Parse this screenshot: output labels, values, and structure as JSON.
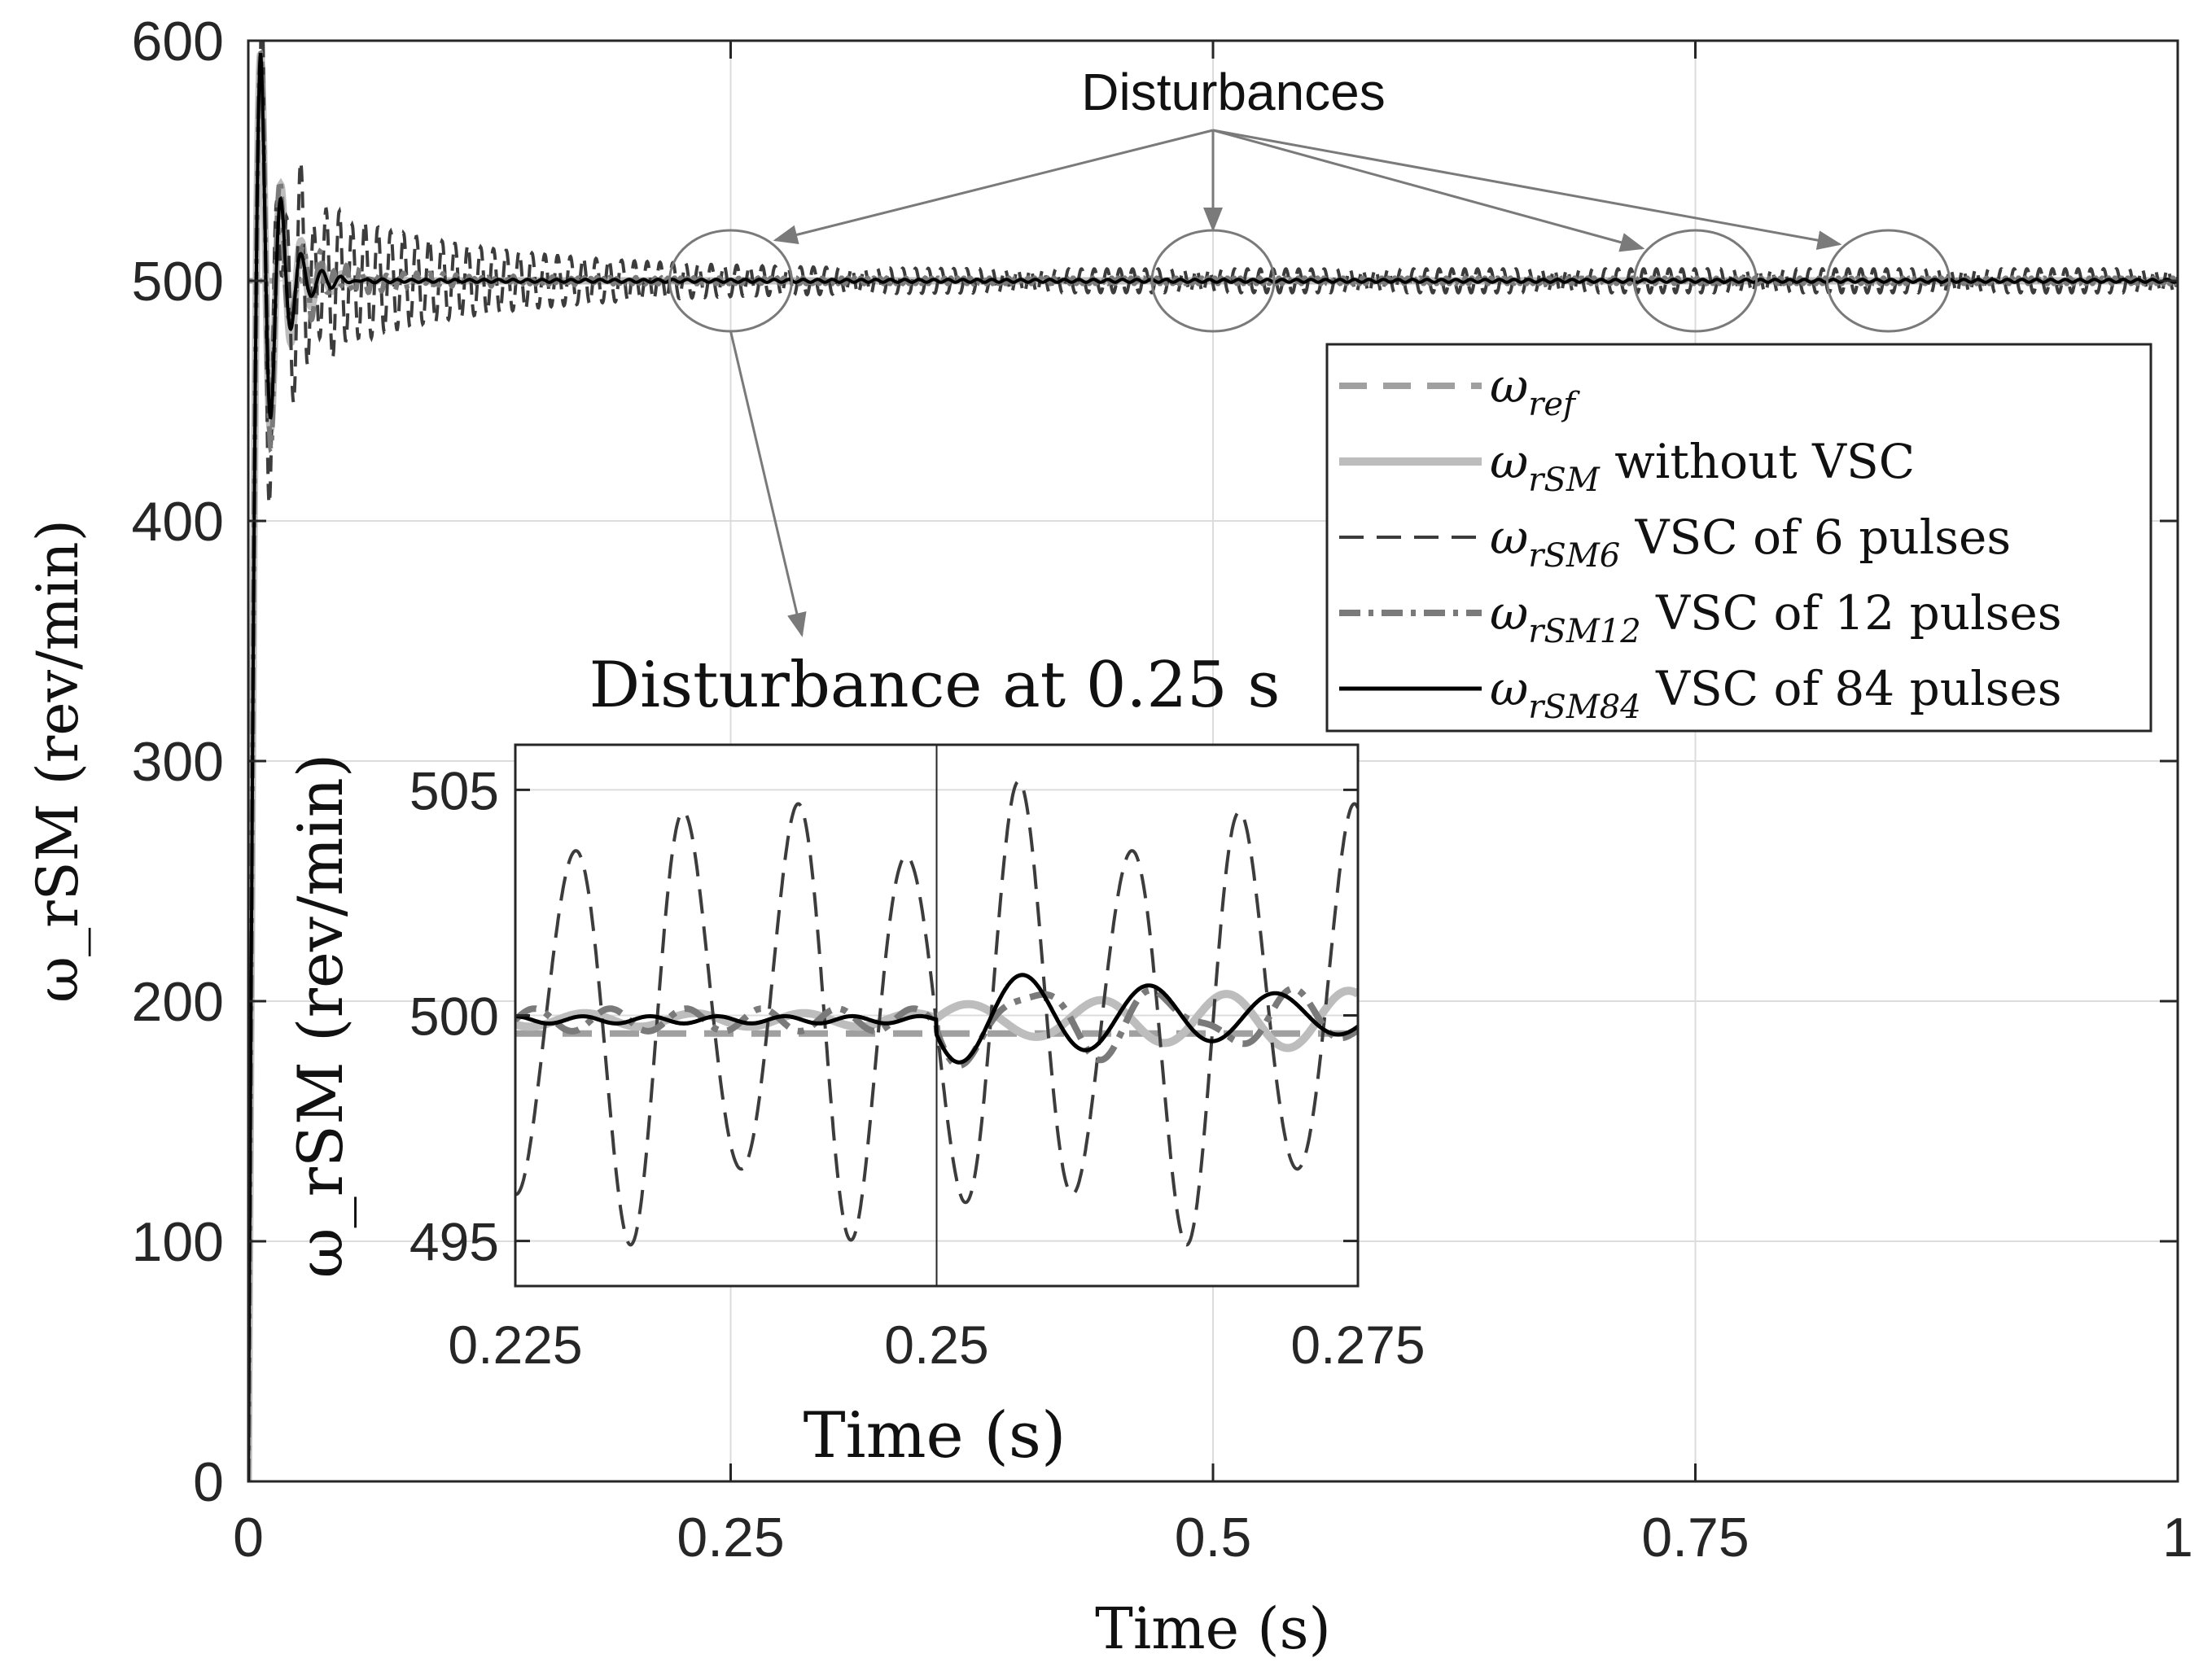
{
  "chart_data": [
    {
      "type": "line",
      "name": "main",
      "xlabel": "Time (s)",
      "ylabel": "ω_rSM (rev/min)",
      "xlim": [
        0,
        1
      ],
      "ylim": [
        0,
        600
      ],
      "xticks": [
        0,
        0.25,
        0.5,
        0.75,
        1
      ],
      "xtick_labels": [
        "0",
        "0.25",
        "0.5",
        "0.75",
        "1"
      ],
      "yticks": [
        0,
        100,
        200,
        300,
        400,
        500,
        600
      ],
      "ytick_labels": [
        "0",
        "100",
        "200",
        "300",
        "400",
        "500",
        "600"
      ],
      "grid": true,
      "legend_position": "right",
      "legend": [
        {
          "symbol": "ω",
          "sub": "ref",
          "text": "",
          "style": "dash-light",
          "color": "#a0a0a0"
        },
        {
          "symbol": "ω",
          "sub": "rSM",
          "text": "without VSC",
          "style": "solid-light",
          "color": "#bdbdbd"
        },
        {
          "symbol": "ω",
          "sub": "rSM6",
          "text": "VSC of 6 pulses",
          "style": "dash-dark",
          "color": "#3c3c3c"
        },
        {
          "symbol": "ω",
          "sub": "rSM12",
          "text": "VSC of 12 pulses",
          "style": "dashdot",
          "color": "#7a7a7a"
        },
        {
          "symbol": "ω",
          "sub": "rSM84",
          "text": "VSC of 84 pulses",
          "style": "solid-black",
          "color": "#000000"
        }
      ],
      "series": [
        {
          "name": "ω_ref",
          "constant": 500
        },
        {
          "name": "ω_rSM without VSC",
          "peak": 595,
          "peak_time": 0.008,
          "settle": 500
        },
        {
          "name": "ω_rSM6 VSC of 6 pulses",
          "peak": 590,
          "settle": 500,
          "steady_ripple": 5
        },
        {
          "name": "ω_rSM12 VSC of 12 pulses",
          "peak": 590,
          "settle": 500,
          "steady_ripple": 1
        },
        {
          "name": "ω_rSM84 VSC of 84 pulses",
          "peak": 590,
          "settle": 500,
          "steady_ripple": 0.5
        }
      ],
      "disturbance_times": [
        0.25,
        0.5,
        0.75,
        0.85
      ],
      "annotation": "Disturbances"
    },
    {
      "type": "line",
      "name": "inset",
      "title": "Disturbance at 0.25 s",
      "xlabel": "Time (s)",
      "ylabel": "ω_rSM (rev/min)",
      "xlim": [
        0.225,
        0.275
      ],
      "ylim": [
        494,
        506
      ],
      "xticks": [
        0.225,
        0.25,
        0.275
      ],
      "xtick_labels": [
        "0.225",
        "0.25",
        "0.275"
      ],
      "yticks": [
        495,
        500,
        505
      ],
      "ytick_labels": [
        "495",
        "500",
        "505"
      ],
      "series": [
        {
          "name": "ω_ref",
          "constant": 499.6
        },
        {
          "name": "ω_rSM6",
          "mean": 500,
          "amplitude": 5.2,
          "period": 0.0066
        },
        {
          "name": "ω_rSM12",
          "mean": 499.9,
          "amplitude": 0.3
        },
        {
          "name": "ω_rSM84",
          "pre": 500,
          "post_amplitude": 1.1,
          "post_period": 0.0075
        }
      ]
    }
  ]
}
